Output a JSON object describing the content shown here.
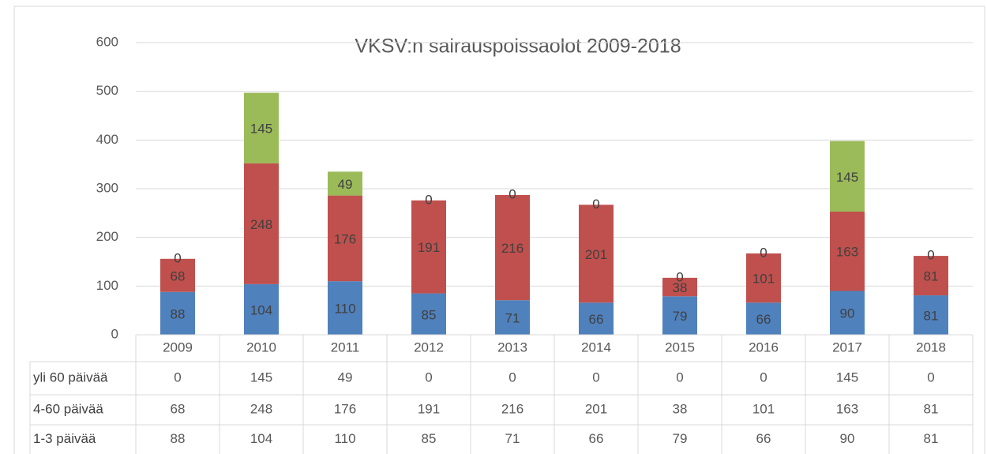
{
  "chart_data": {
    "type": "stacked_bar",
    "title": "VKSV:n sairauspoissaolot 2009-2018",
    "categories": [
      "2009",
      "2010",
      "2011",
      "2012",
      "2013",
      "2014",
      "2015",
      "2016",
      "2017",
      "2018"
    ],
    "series": [
      {
        "name": "yli 60 päivää",
        "color": "#9bbb59",
        "values": [
          0,
          145,
          49,
          0,
          0,
          0,
          0,
          0,
          145,
          0
        ]
      },
      {
        "name": "4-60 päivää",
        "color": "#c0504d",
        "values": [
          68,
          248,
          176,
          191,
          216,
          201,
          38,
          101,
          163,
          81
        ]
      },
      {
        "name": "1-3 päivää",
        "color": "#4f81bd",
        "values": [
          88,
          104,
          110,
          85,
          71,
          66,
          79,
          66,
          90,
          81
        ]
      }
    ],
    "ylim": [
      0,
      600
    ],
    "yticks": [
      0,
      100,
      200,
      300,
      400,
      500,
      600
    ],
    "grid": true
  }
}
